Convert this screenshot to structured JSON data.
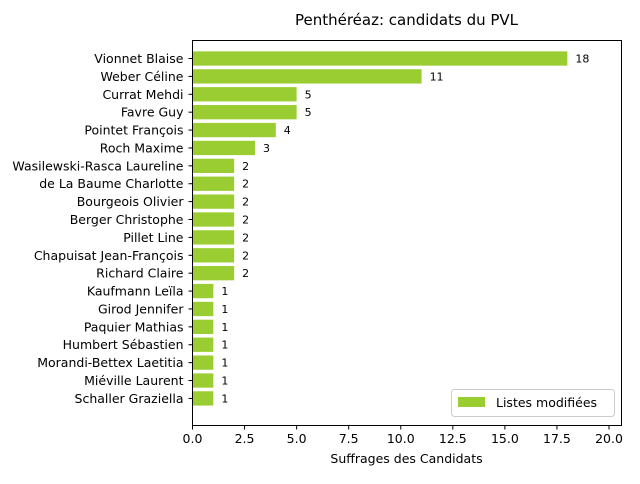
{
  "chart_data": {
    "type": "bar",
    "orientation": "horizontal",
    "title": "Penthéréaz: candidats du PVL",
    "xlabel": "Suffrages des Candidats",
    "ylabel": "",
    "xlim": [
      0,
      20.6
    ],
    "xticks": [
      "0.0",
      "2.5",
      "5.0",
      "7.5",
      "10.0",
      "12.5",
      "15.0",
      "17.5",
      "20.0"
    ],
    "xtick_values": [
      0,
      2.5,
      5,
      7.5,
      10,
      12.5,
      15,
      17.5,
      20
    ],
    "grid": false,
    "legend_position": "bottom-right",
    "bar_color": "#9acd32",
    "series": [
      {
        "name": "Listes modifiées",
        "categories": [
          "Vionnet Blaise",
          "Weber Céline",
          "Currat Mehdi",
          "Favre Guy",
          "Pointet François",
          "Roch Maxime",
          "Wasilewski-Rasca Laureline",
          "de La Baume Charlotte",
          "Bourgeois Olivier",
          "Berger Christophe",
          "Pillet Line",
          "Chapuisat Jean-François",
          "Richard Claire",
          "Kaufmann Leïla",
          "Girod Jennifer",
          "Paquier Mathias",
          "Humbert Sébastien",
          "Morandi-Bettex Laetitia",
          "Miéville Laurent",
          "Schaller Graziella"
        ],
        "values": [
          18,
          11,
          5,
          5,
          4,
          3,
          2,
          2,
          2,
          2,
          2,
          2,
          2,
          1,
          1,
          1,
          1,
          1,
          1,
          1
        ]
      }
    ]
  }
}
